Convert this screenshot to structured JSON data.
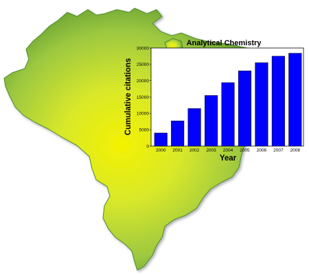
{
  "chart_data": {
    "type": "bar",
    "title": "Analytical Chemistry",
    "xlabel": "Year",
    "ylabel": "Cumulative citations",
    "categories": [
      "2000",
      "2001",
      "2002",
      "2003",
      "2004",
      "2005",
      "2006",
      "2007",
      "2008"
    ],
    "values": [
      4000,
      7700,
      11500,
      15500,
      19400,
      23000,
      25500,
      27500,
      28400
    ],
    "yticks": [
      0,
      5000,
      10000,
      15000,
      20000,
      25000,
      30000
    ],
    "ylim": [
      0,
      30000
    ],
    "grid": false,
    "legend": "none",
    "bar_color": "#0000ff",
    "bar_edge_color": "#000000",
    "background_map_colors": {
      "center": "#f2f200",
      "mid": "#b8d63a",
      "edge": "#5a9a2a"
    }
  }
}
